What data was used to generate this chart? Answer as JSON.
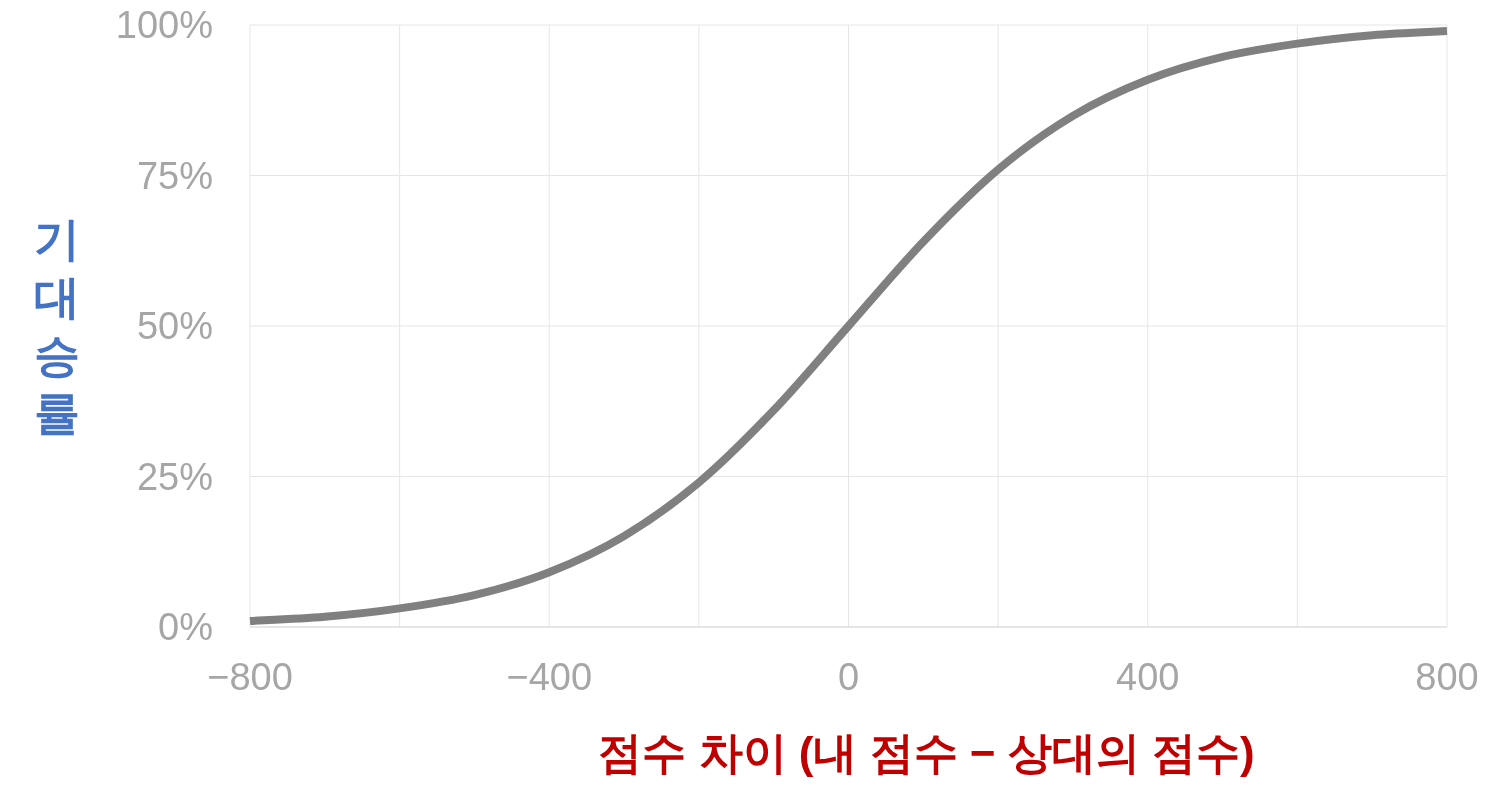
{
  "chart_data": {
    "type": "line",
    "xlabel": "점수 차이 (내 점수 − 상대의 점수)",
    "ylabel": "기대승률",
    "x": [
      -800,
      -700,
      -600,
      -500,
      -400,
      -300,
      -200,
      -100,
      0,
      100,
      200,
      300,
      400,
      500,
      600,
      700,
      800
    ],
    "series": [
      {
        "color": "#808080",
        "values": [
          1.0,
          1.7,
          3.1,
          5.3,
          9.1,
          15.1,
          24.0,
          36.0,
          50.0,
          64.0,
          76.0,
          84.9,
          90.9,
          94.7,
          96.9,
          98.3,
          99.0
        ]
      }
    ],
    "xlim": [
      -800,
      800
    ],
    "ylim": [
      0,
      100
    ],
    "xticks": [
      -800,
      {
        "value": -600,
        "label": null
      },
      -400,
      {
        "value": -200,
        "label": null
      },
      0,
      {
        "value": 200,
        "label": null
      },
      400,
      {
        "value": 600,
        "label": null
      },
      800
    ],
    "yticks": [
      {
        "value": 0,
        "label": "0%"
      },
      {
        "value": 25,
        "label": "25%"
      },
      {
        "value": 50,
        "label": "50%"
      },
      {
        "value": 75,
        "label": "75%"
      },
      {
        "value": 100,
        "label": "100%"
      }
    ],
    "grid": true
  }
}
